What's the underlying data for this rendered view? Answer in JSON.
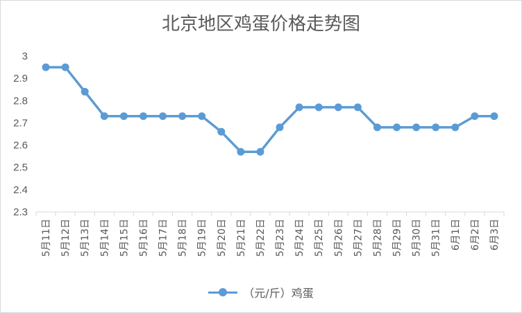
{
  "chart_data": {
    "type": "line",
    "title": "北京地区鸡蛋价格走势图",
    "categories": [
      "5月11日",
      "5月12日",
      "5月13日",
      "5月14日",
      "5月15日",
      "5月16日",
      "5月17日",
      "5月18日",
      "5月19日",
      "5月20日",
      "5月21日",
      "5月22日",
      "5月23日",
      "5月24日",
      "5月25日",
      "5月26日",
      "5月27日",
      "5月28日",
      "5月29日",
      "5月30日",
      "5月31日",
      "6月1日",
      "6月2日",
      "6月3日"
    ],
    "series": [
      {
        "name": "（元/斤）鸡蛋",
        "values": [
          2.95,
          2.95,
          2.84,
          2.73,
          2.73,
          2.73,
          2.73,
          2.73,
          2.73,
          2.66,
          2.57,
          2.57,
          2.68,
          2.77,
          2.77,
          2.77,
          2.77,
          2.68,
          2.68,
          2.68,
          2.68,
          2.68,
          2.73,
          2.73
        ]
      }
    ],
    "ylim": [
      2.3,
      3.0
    ],
    "yticks": [
      "2.3",
      "2.4",
      "2.5",
      "2.6",
      "2.7",
      "2.8",
      "2.9",
      "3"
    ],
    "grid": false,
    "legend_position": "bottom",
    "color": "#5b9bd5"
  }
}
